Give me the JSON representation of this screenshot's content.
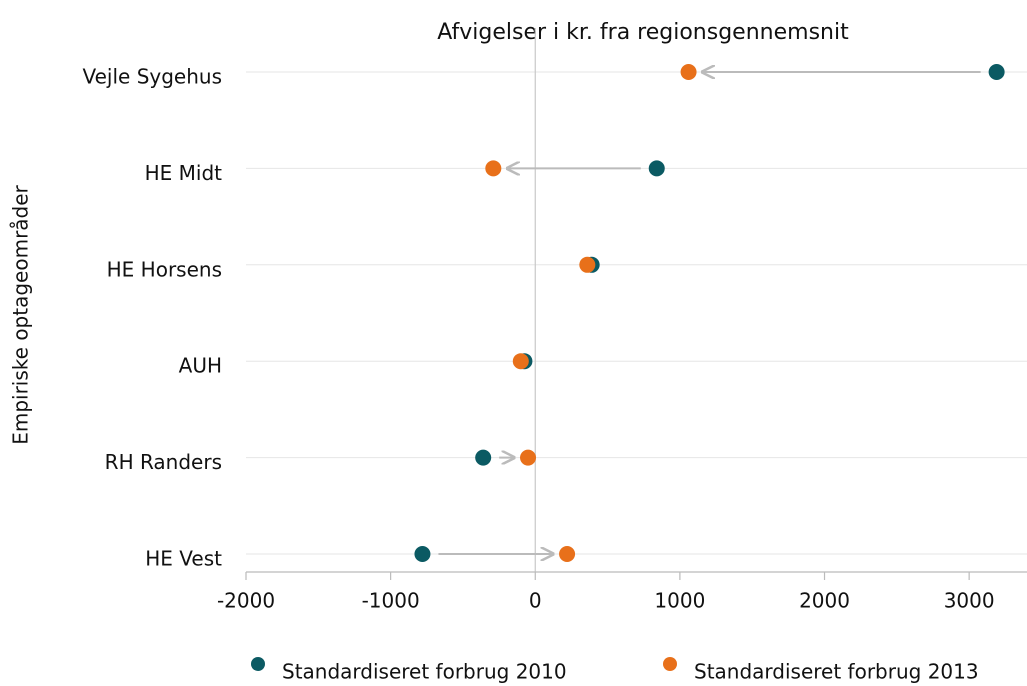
{
  "chart_data": {
    "type": "dumbbell",
    "title": "Afvigelser i kr. fra regionsgennemsnit",
    "y_label": "Empiriske optageområder",
    "categories": [
      "Vejle Sygehus",
      "HE Midt",
      "HE Horsens",
      "AUH",
      "RH Randers",
      "HE Vest"
    ],
    "series": [
      {
        "name": "Standardiseret forbrug 2010",
        "color": "#0b5a63",
        "values": [
          3190,
          840,
          390,
          -75,
          -360,
          -780
        ]
      },
      {
        "name": "Standardiseret forbrug 2013",
        "color": "#e8701a",
        "values": [
          1060,
          -290,
          360,
          -100,
          -50,
          220
        ]
      }
    ],
    "xlim": [
      -2000,
      3400
    ],
    "xticks": [
      -2000,
      -1000,
      0,
      1000,
      2000,
      3000
    ],
    "grid": true,
    "legend": "bottom"
  }
}
